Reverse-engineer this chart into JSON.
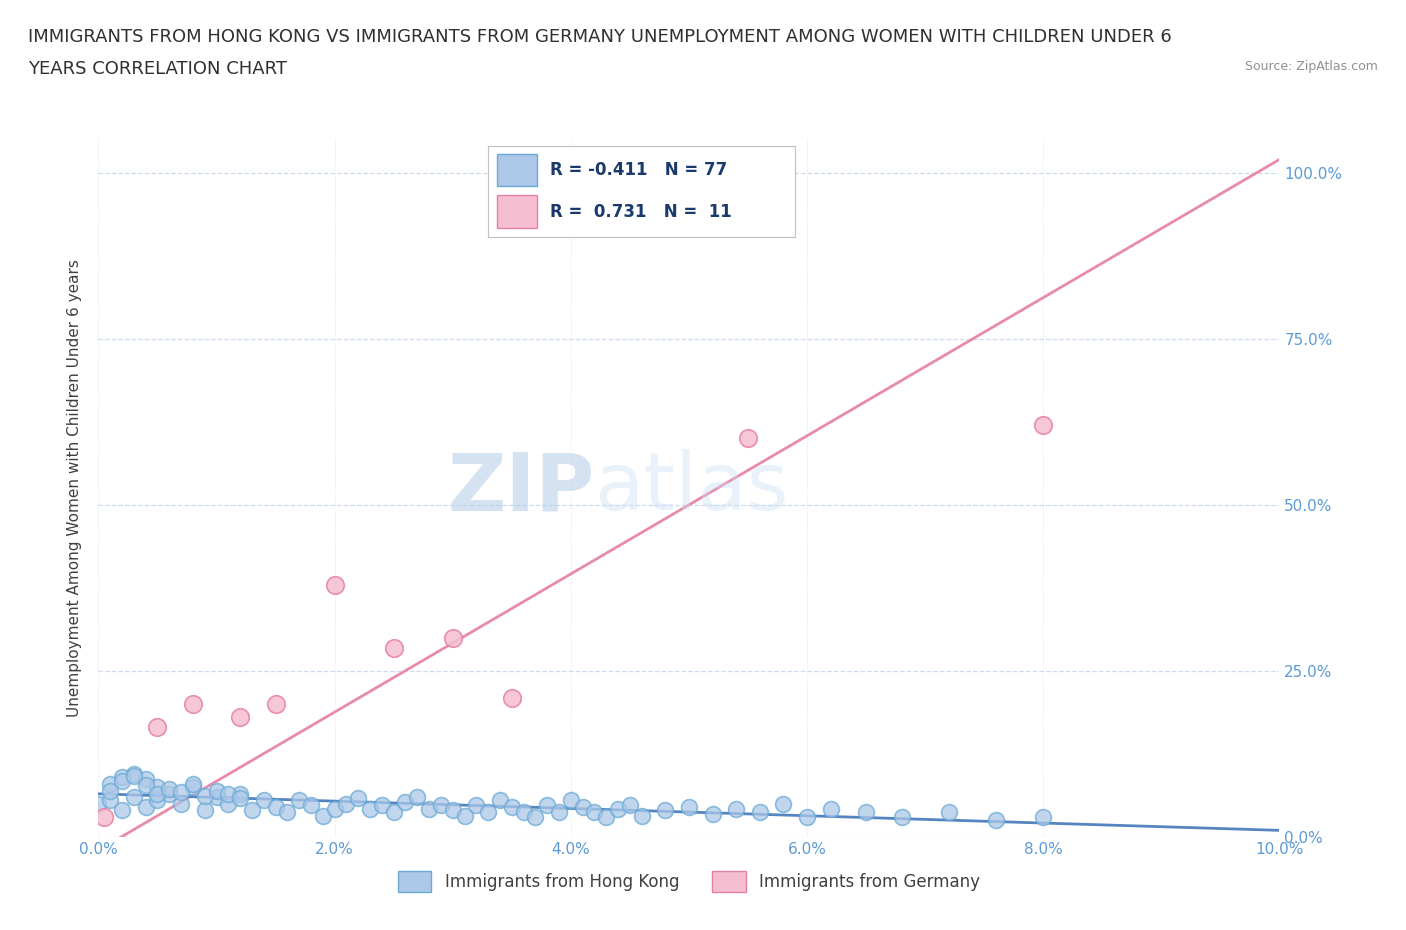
{
  "title_line1": "IMMIGRANTS FROM HONG KONG VS IMMIGRANTS FROM GERMANY UNEMPLOYMENT AMONG WOMEN WITH CHILDREN UNDER 6",
  "title_line2": "YEARS CORRELATION CHART",
  "source": "Source: ZipAtlas.com",
  "ylabel": "Unemployment Among Women with Children Under 6 years",
  "xlim": [
    0.0,
    0.1
  ],
  "ylim": [
    0.0,
    1.05
  ],
  "x_ticks": [
    0.0,
    0.02,
    0.04,
    0.06,
    0.08,
    0.1
  ],
  "x_tick_labels": [
    "0.0%",
    "2.0%",
    "4.0%",
    "6.0%",
    "8.0%",
    "10.0%"
  ],
  "y_ticks": [
    0.0,
    0.25,
    0.5,
    0.75,
    1.0
  ],
  "y_tick_labels_left": [
    "",
    "",
    "",
    "",
    ""
  ],
  "y_tick_labels_right": [
    "0.0%",
    "25.0%",
    "50.0%",
    "75.0%",
    "100.0%"
  ],
  "hk_color": "#adc8e8",
  "hk_edge": "#6aaad6",
  "de_color": "#f5bdd0",
  "de_edge": "#e8819e",
  "hk_line_color": "#5585c0",
  "de_line_color": "#e88aaa",
  "hk_R": -0.411,
  "hk_N": 77,
  "de_R": 0.731,
  "de_N": 11,
  "watermark_zip": "ZIP",
  "watermark_atlas": "atlas",
  "watermark_color": "#c8ddf0",
  "legend_label_hk": "Immigrants from Hong Kong",
  "legend_label_de": "Immigrants from Germany",
  "hk_scatter_x": [
    0.0,
    0.001,
    0.002,
    0.003,
    0.004,
    0.005,
    0.006,
    0.007,
    0.008,
    0.009,
    0.01,
    0.011,
    0.012,
    0.013,
    0.014,
    0.015,
    0.016,
    0.017,
    0.018,
    0.019,
    0.02,
    0.021,
    0.022,
    0.023,
    0.024,
    0.025,
    0.026,
    0.027,
    0.028,
    0.029,
    0.03,
    0.031,
    0.032,
    0.033,
    0.034,
    0.035,
    0.036,
    0.037,
    0.038,
    0.039,
    0.04,
    0.041,
    0.042,
    0.043,
    0.044,
    0.045,
    0.046,
    0.048,
    0.05,
    0.052,
    0.054,
    0.056,
    0.058,
    0.06,
    0.062,
    0.065,
    0.068,
    0.072,
    0.076,
    0.08,
    0.001,
    0.002,
    0.003,
    0.004,
    0.005,
    0.001,
    0.002,
    0.003,
    0.004,
    0.005,
    0.006,
    0.007,
    0.008,
    0.009,
    0.01,
    0.011,
    0.012
  ],
  "hk_scatter_y": [
    0.05,
    0.055,
    0.04,
    0.06,
    0.045,
    0.055,
    0.065,
    0.05,
    0.075,
    0.04,
    0.06,
    0.05,
    0.065,
    0.04,
    0.055,
    0.045,
    0.038,
    0.055,
    0.048,
    0.032,
    0.042,
    0.05,
    0.058,
    0.042,
    0.048,
    0.038,
    0.052,
    0.06,
    0.042,
    0.048,
    0.04,
    0.032,
    0.048,
    0.038,
    0.055,
    0.045,
    0.038,
    0.03,
    0.048,
    0.038,
    0.055,
    0.045,
    0.038,
    0.03,
    0.042,
    0.048,
    0.032,
    0.04,
    0.045,
    0.035,
    0.042,
    0.038,
    0.05,
    0.03,
    0.042,
    0.038,
    0.03,
    0.038,
    0.025,
    0.03,
    0.08,
    0.09,
    0.095,
    0.088,
    0.075,
    0.07,
    0.085,
    0.092,
    0.078,
    0.065,
    0.072,
    0.068,
    0.08,
    0.062,
    0.07,
    0.065,
    0.058
  ],
  "de_scatter_x": [
    0.0005,
    0.005,
    0.008,
    0.012,
    0.015,
    0.02,
    0.025,
    0.03,
    0.035,
    0.055,
    0.08
  ],
  "de_scatter_y": [
    0.03,
    0.165,
    0.2,
    0.18,
    0.2,
    0.38,
    0.285,
    0.3,
    0.21,
    0.6,
    0.62
  ],
  "de_line_x0": 0.0,
  "de_line_y0": -0.02,
  "de_line_x1": 0.1,
  "de_line_y1": 1.02,
  "hk_line_x0": 0.0,
  "hk_line_y0": 0.065,
  "hk_line_x1": 0.1,
  "hk_line_y1": 0.01
}
